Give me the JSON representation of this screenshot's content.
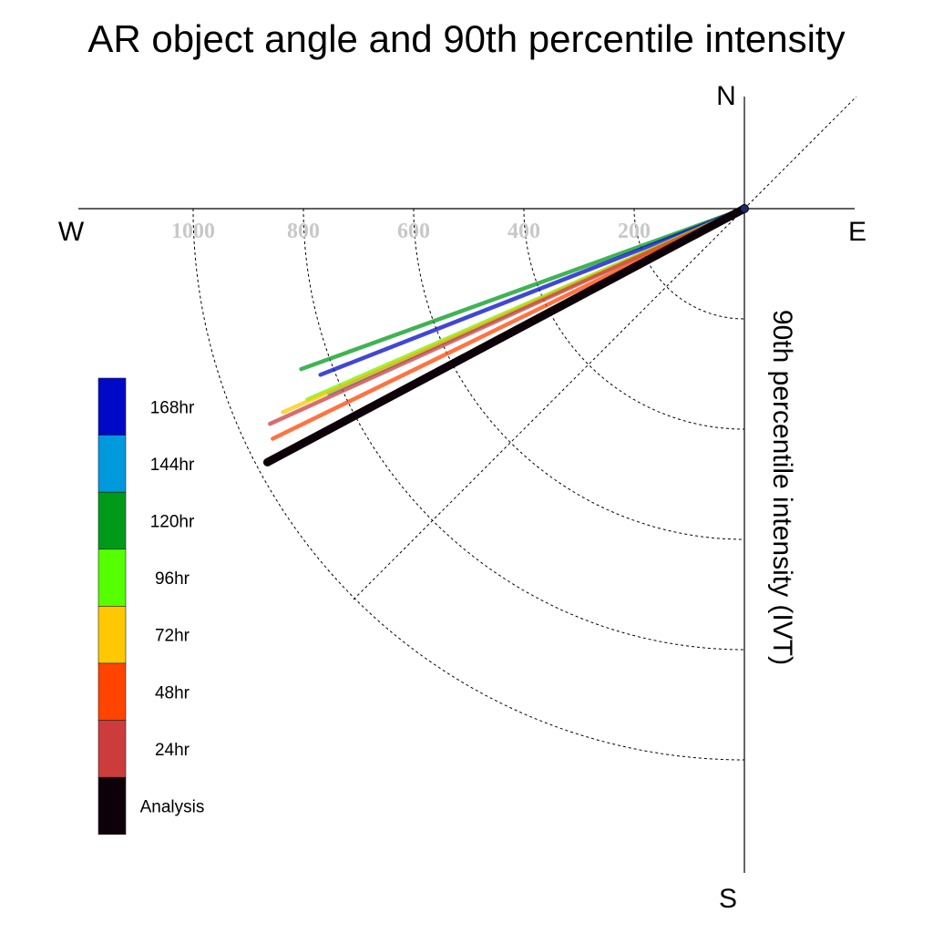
{
  "chart_data": {
    "type": "polar-line",
    "title": "AR object angle and 90th percentile intensity",
    "ylabel": "90th percentile intensity (IVT)",
    "compass": {
      "north": "N",
      "south": "S",
      "east": "E",
      "west": "W"
    },
    "radial_ticks": [
      200,
      400,
      600,
      800,
      1000
    ],
    "radial_tick_labels": [
      "200",
      "400",
      "600",
      "800",
      "1000"
    ],
    "rlim": [
      0,
      1200
    ],
    "grid": true,
    "legend_position": "left",
    "series": [
      {
        "name": "120hr",
        "color": "#009a1a",
        "angle_deg": 19.9,
        "intensity": 855
      },
      {
        "name": "168hr",
        "color": "#0009c8",
        "angle_deg": 21.4,
        "intensity": 826
      },
      {
        "name": "96hr",
        "color": "#55ff00",
        "angle_deg": 23.6,
        "intensity": 865
      },
      {
        "name": "144hr",
        "color": "#0099dd",
        "angle_deg": 24.0,
        "intensity": 825
      },
      {
        "name": "72hr",
        "color": "#ffc800",
        "angle_deg": 23.8,
        "intensity": 915
      },
      {
        "name": "24hr",
        "color": "#cc3c3c",
        "angle_deg": 24.4,
        "intensity": 945
      },
      {
        "name": "48hr",
        "color": "#ff4400",
        "angle_deg": 26.0,
        "intensity": 952
      },
      {
        "name": "Analysis",
        "color": "#0d0008",
        "angle_deg": 28.0,
        "intensity": 980
      }
    ],
    "legend": [
      {
        "label": "168hr",
        "color": "#0009c8"
      },
      {
        "label": "144hr",
        "color": "#0099dd"
      },
      {
        "label": "120hr",
        "color": "#009a1a"
      },
      {
        "label": "96hr",
        "color": "#55ff00"
      },
      {
        "label": "72hr",
        "color": "#ffc800"
      },
      {
        "label": "48hr",
        "color": "#ff4400"
      },
      {
        "label": "24hr",
        "color": "#cc3c3c"
      },
      {
        "label": "Analysis",
        "color": "#0d0008"
      }
    ]
  }
}
